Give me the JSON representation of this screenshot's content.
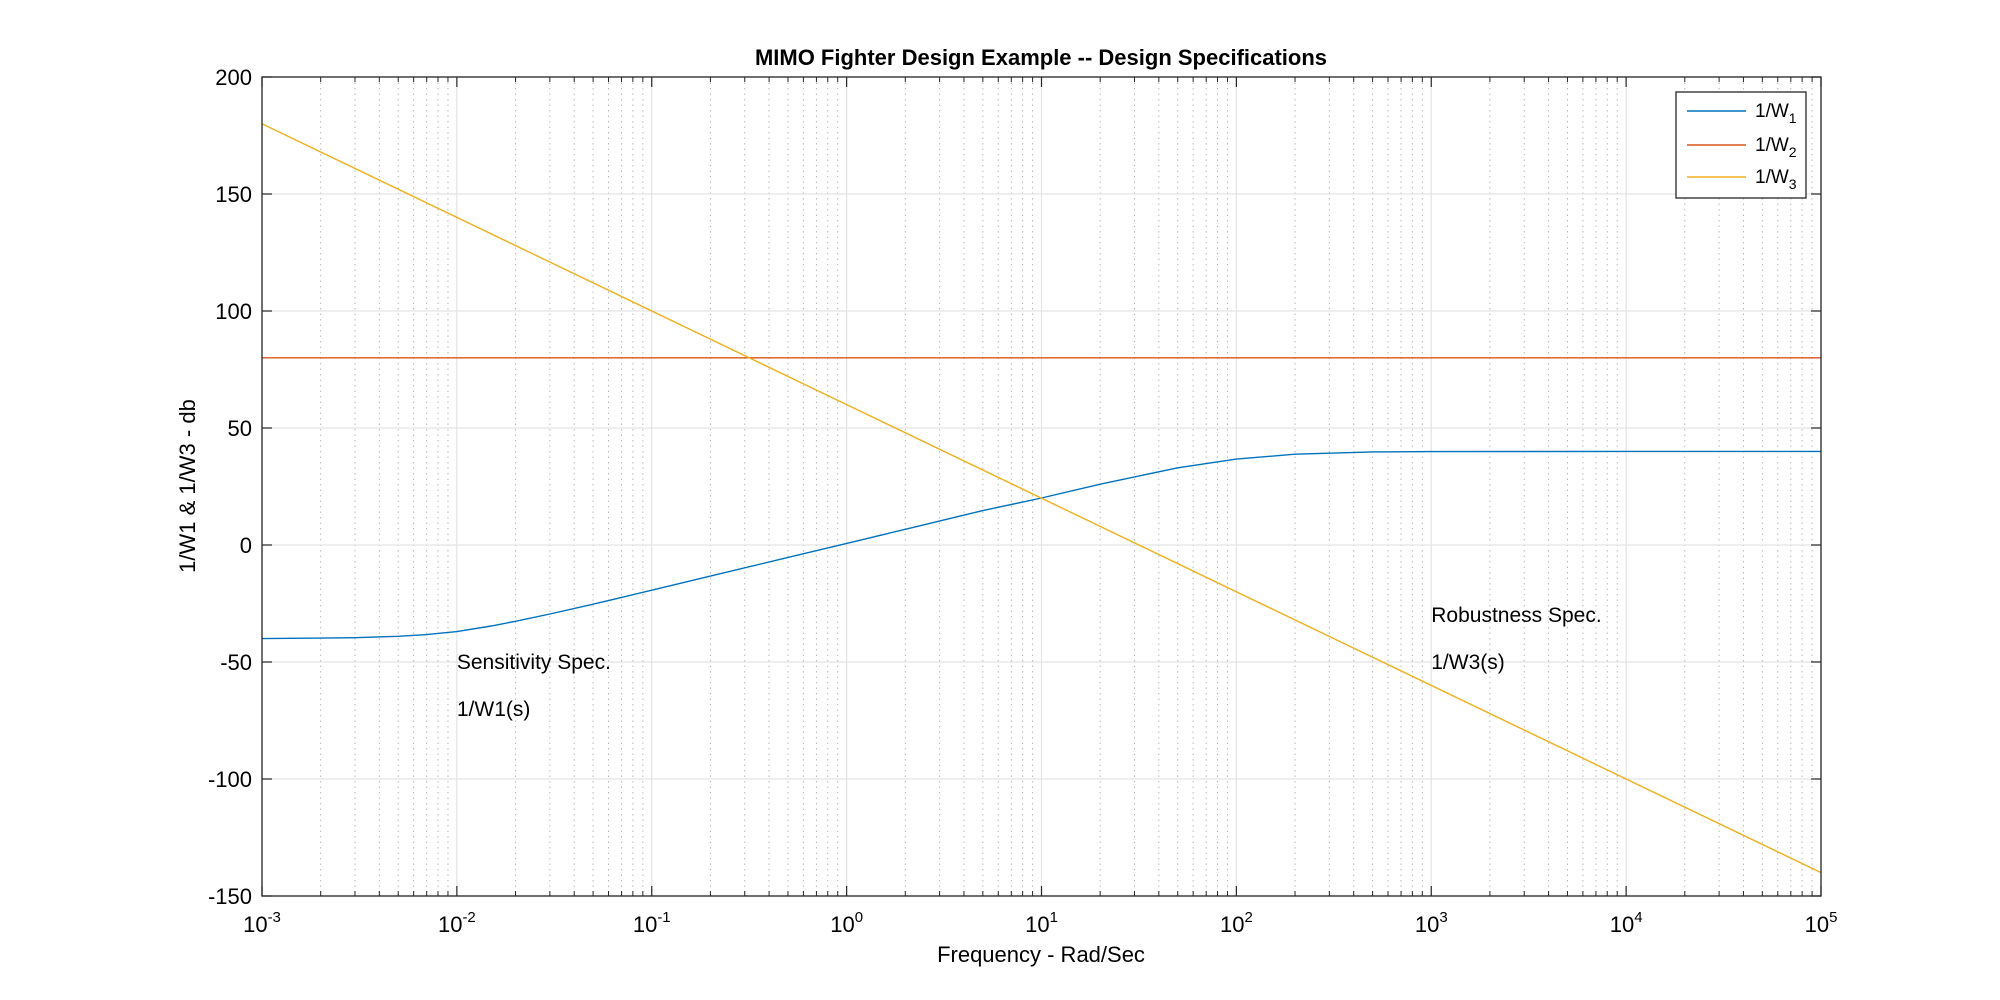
{
  "chart_data": {
    "type": "line",
    "title": "MIMO Fighter Design Example -- Design Specifications",
    "xlabel": "Frequency - Rad/Sec",
    "ylabel": "1/W1 & 1/W3 - db",
    "xscale": "log",
    "xlim": [
      0.001,
      100000
    ],
    "ylim": [
      -150,
      200
    ],
    "grid": true,
    "x_ticks": [
      {
        "value": 0.001,
        "base": "10",
        "exp": "-3"
      },
      {
        "value": 0.01,
        "base": "10",
        "exp": "-2"
      },
      {
        "value": 0.1,
        "base": "10",
        "exp": "-1"
      },
      {
        "value": 1,
        "base": "10",
        "exp": "0"
      },
      {
        "value": 10,
        "base": "10",
        "exp": "1"
      },
      {
        "value": 100,
        "base": "10",
        "exp": "2"
      },
      {
        "value": 1000,
        "base": "10",
        "exp": "3"
      },
      {
        "value": 10000,
        "base": "10",
        "exp": "4"
      },
      {
        "value": 100000,
        "base": "10",
        "exp": "5"
      }
    ],
    "y_ticks": [
      {
        "value": 200,
        "label": "200"
      },
      {
        "value": 150,
        "label": "150"
      },
      {
        "value": 100,
        "label": "100"
      },
      {
        "value": 50,
        "label": "50"
      },
      {
        "value": 0,
        "label": "0"
      },
      {
        "value": -50,
        "label": "-50"
      },
      {
        "value": -100,
        "label": "-100"
      },
      {
        "value": -150,
        "label": "-150"
      }
    ],
    "legend": {
      "location": "top-right",
      "entries": [
        {
          "prefix": "1/W",
          "sub": "1"
        },
        {
          "prefix": "1/W",
          "sub": "2"
        },
        {
          "prefix": "1/W",
          "sub": "3"
        }
      ]
    },
    "series": [
      {
        "color": "#0072BD",
        "x": [
          0.001,
          0.002,
          0.003,
          0.005,
          0.007,
          0.01,
          0.015,
          0.02,
          0.03,
          0.05,
          0.07,
          0.1,
          0.2,
          0.5,
          1,
          2,
          5,
          10,
          20,
          50,
          100,
          200,
          500,
          1000,
          10000,
          100000
        ],
        "y": [
          -40,
          -39.8,
          -39.6,
          -39,
          -38.3,
          -37,
          -34.6,
          -32.6,
          -29.5,
          -25.3,
          -22.4,
          -19.3,
          -13.3,
          -5.3,
          0.7,
          6.7,
          14.7,
          20.1,
          26,
          33,
          36.7,
          38.8,
          39.8,
          39.9,
          40,
          40
        ]
      },
      {
        "color": "#D95319",
        "x": [
          0.001,
          100000
        ],
        "y": [
          80,
          80
        ]
      },
      {
        "color": "#EDB120",
        "x": [
          0.001,
          100000
        ],
        "y": [
          180,
          -140
        ]
      }
    ],
    "annotations": [
      {
        "text": "Sensitivity Spec.",
        "x": 0.01,
        "y": -50
      },
      {
        "text": "1/W1(s)",
        "x": 0.01,
        "y": -70
      },
      {
        "text": "Robustness Spec.",
        "x": 1000,
        "y": -30
      },
      {
        "text": "1/W3(s)",
        "x": 1000,
        "y": -50
      }
    ]
  }
}
